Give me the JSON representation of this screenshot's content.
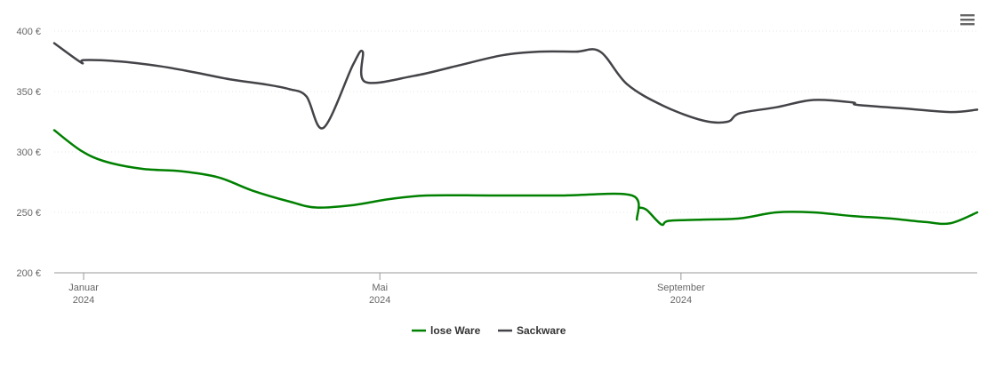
{
  "menu": {
    "icon": "hamburger-menu-icon"
  },
  "chart_data": {
    "type": "line",
    "title": "",
    "xlabel": "",
    "ylabel": "",
    "ylim": [
      200,
      400
    ],
    "y_ticks": [
      200,
      250,
      300,
      350,
      400
    ],
    "y_tick_labels": [
      "200 €",
      "250 €",
      "300 €",
      "350 €",
      "400 €"
    ],
    "x_tick_labels": [
      {
        "date": "2024-01-01",
        "month": "Januar",
        "year": "2024"
      },
      {
        "date": "2024-05-01",
        "month": "Mai",
        "year": "2024"
      },
      {
        "date": "2024-09-01",
        "month": "September",
        "year": "2024"
      }
    ],
    "grid": true,
    "legend_position": "bottom-center",
    "series": [
      {
        "name": "lose Ware",
        "color": "#008000",
        "segments": [
          [
            [
              "2023-12-20",
              318
            ],
            [
              "2023-12-31",
              301
            ],
            [
              "2024-01-10",
              292
            ],
            [
              "2024-01-25",
              286
            ],
            [
              "2024-02-10",
              284
            ],
            [
              "2024-02-25",
              279
            ],
            [
              "2024-03-10",
              268
            ],
            [
              "2024-03-25",
              259
            ],
            [
              "2024-04-05",
              254
            ],
            [
              "2024-04-20",
              256
            ],
            [
              "2024-05-05",
              261
            ],
            [
              "2024-05-20",
              264
            ],
            [
              "2024-06-15",
              264
            ],
            [
              "2024-07-15",
              264
            ],
            [
              "2024-08-12",
              264
            ],
            [
              "2024-08-14",
              244
            ]
          ],
          [
            [
              "2024-08-15",
              254
            ],
            [
              "2024-08-18",
              252
            ],
            [
              "2024-08-24",
              240
            ],
            [
              "2024-08-27",
              243
            ],
            [
              "2024-09-10",
              244
            ],
            [
              "2024-09-25",
              245
            ],
            [
              "2024-10-10",
              250
            ],
            [
              "2024-10-25",
              250
            ],
            [
              "2024-11-10",
              247
            ],
            [
              "2024-11-25",
              245
            ],
            [
              "2024-12-10",
              242
            ],
            [
              "2024-12-20",
              241
            ],
            [
              "2024-12-31",
              250
            ]
          ]
        ]
      },
      {
        "name": "Sackware",
        "color": "#434348",
        "segments": [
          [
            [
              "2023-12-20",
              390
            ],
            [
              "2023-12-31",
              374
            ],
            [
              "2024-01-01",
              376
            ],
            [
              "2024-01-15",
              375
            ],
            [
              "2024-02-01",
              371
            ],
            [
              "2024-02-15",
              366
            ],
            [
              "2024-03-01",
              360
            ],
            [
              "2024-03-15",
              356
            ],
            [
              "2024-03-25",
              352
            ],
            [
              "2024-04-01",
              346
            ],
            [
              "2024-04-08",
              320
            ],
            [
              "2024-04-20",
              372
            ],
            [
              "2024-04-24",
              383
            ],
            [
              "2024-04-25",
              358
            ],
            [
              "2024-05-15",
              363
            ],
            [
              "2024-06-01",
              371
            ],
            [
              "2024-06-20",
              380
            ],
            [
              "2024-07-05",
              383
            ],
            [
              "2024-07-20",
              383
            ],
            [
              "2024-07-30",
              383
            ],
            [
              "2024-08-10",
              356
            ],
            [
              "2024-08-25",
              338
            ],
            [
              "2024-09-10",
              326
            ],
            [
              "2024-09-20",
              325
            ],
            [
              "2024-09-25",
              332
            ],
            [
              "2024-10-10",
              337
            ],
            [
              "2024-10-25",
              343
            ],
            [
              "2024-11-10",
              341
            ],
            [
              "2024-11-12",
              339
            ],
            [
              "2024-12-01",
              336
            ],
            [
              "2024-12-20",
              333
            ],
            [
              "2024-12-31",
              335
            ]
          ]
        ]
      }
    ]
  }
}
